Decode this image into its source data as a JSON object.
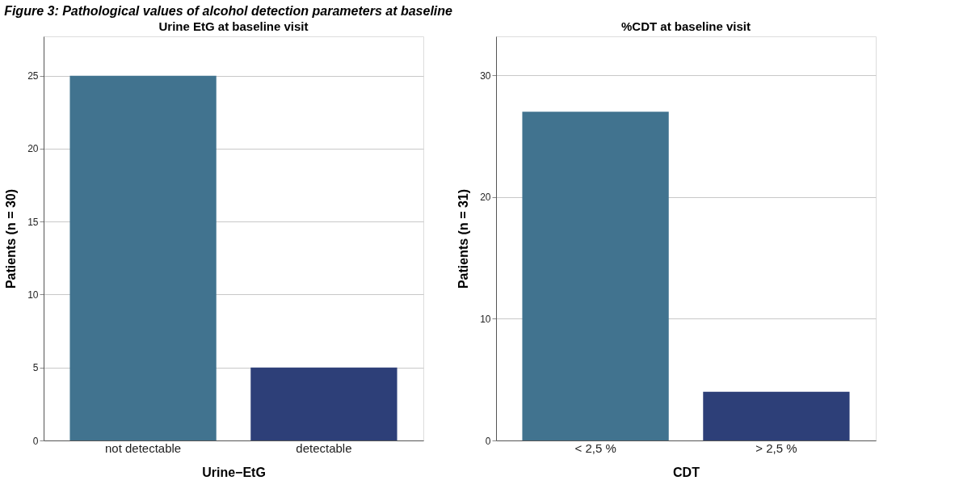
{
  "chart_data": [
    {
      "type": "bar",
      "title": "Urine EtG at baseline visit",
      "xlabel": "Urine−EtG",
      "ylabel": "Patients (n = 30)",
      "categories": [
        "not detectable",
        "detectable"
      ],
      "values": [
        25,
        5
      ],
      "colors": [
        "#41738f",
        "#2d3f78"
      ],
      "ylim": [
        0,
        27.7
      ],
      "yticks": [
        0,
        5,
        10,
        15,
        20,
        25
      ],
      "grid": "y",
      "annotations": [
        "Figure 3: Pathological values of alcohol detection parameters at baseline"
      ]
    },
    {
      "type": "bar",
      "title": "%CDT at baseline visit",
      "xlabel": "CDT",
      "ylabel": "Patients (n = 31)",
      "categories": [
        "< 2,5 %",
        "> 2,5 %"
      ],
      "values": [
        27,
        4
      ],
      "colors": [
        "#41738f",
        "#2d3f78"
      ],
      "ylim": [
        0,
        33.2
      ],
      "yticks": [
        0,
        10,
        20,
        30
      ],
      "grid": "y"
    }
  ]
}
